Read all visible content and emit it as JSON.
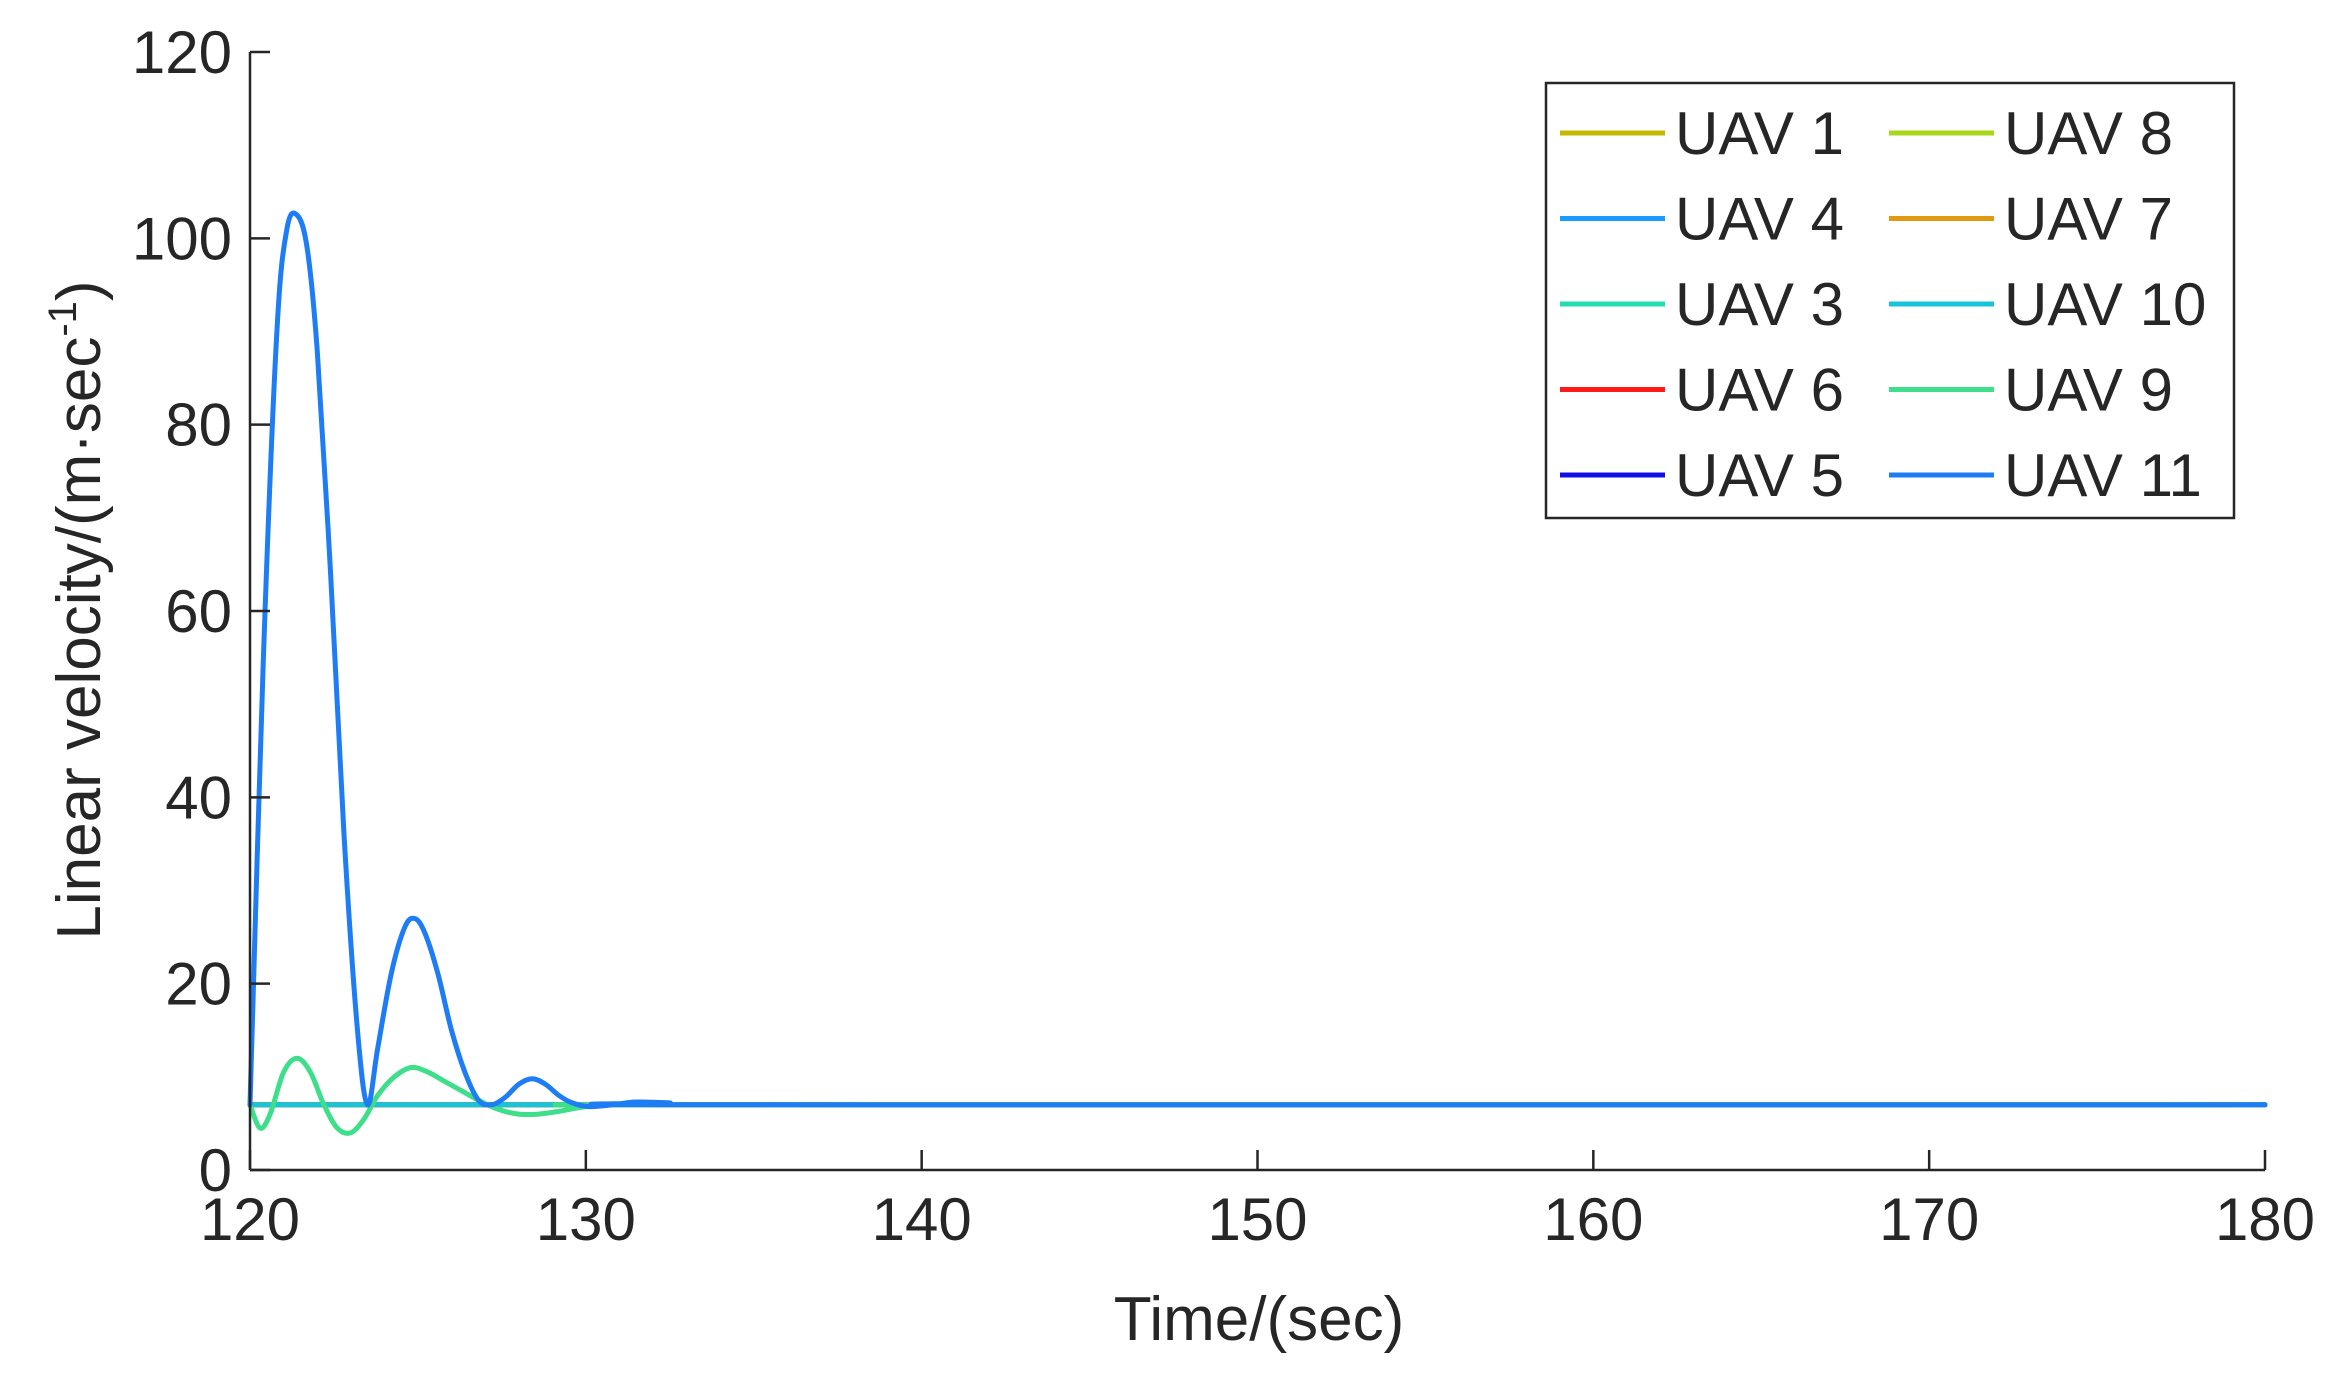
{
  "chart_data": {
    "type": "line",
    "xlabel": "Time/(sec)",
    "ylabel": "Linear velocity/(m·sec",
    "ylabel_superscript": "-1",
    "ylabel_suffix": ")",
    "xlim": [
      120,
      180
    ],
    "ylim": [
      0,
      120
    ],
    "xticks": [
      120,
      130,
      140,
      150,
      160,
      170,
      180
    ],
    "yticks": [
      0,
      20,
      40,
      60,
      80,
      100,
      120
    ],
    "grid": false,
    "legend_position": "top-right",
    "legend_columns": 2,
    "series": [
      {
        "name": "UAV 1",
        "color": "#c5b800",
        "x": [
          120,
          180
        ],
        "y": [
          7,
          7
        ]
      },
      {
        "name": "UAV 4",
        "color": "#1a9cff",
        "x": [
          120,
          180
        ],
        "y": [
          7,
          7
        ]
      },
      {
        "name": "UAV 3",
        "color": "#22ddb0",
        "x": [
          120,
          180
        ],
        "y": [
          7,
          7
        ]
      },
      {
        "name": "UAV 6",
        "color": "#ff1a1a",
        "x": [
          120,
          180
        ],
        "y": [
          7,
          7
        ]
      },
      {
        "name": "UAV 5",
        "color": "#1010e6",
        "x": [
          120,
          180
        ],
        "y": [
          7,
          7
        ]
      },
      {
        "name": "UAV 8",
        "color": "#a8d81c",
        "x": [
          120,
          180
        ],
        "y": [
          7,
          7
        ]
      },
      {
        "name": "UAV 7",
        "color": "#e09a10",
        "x": [
          120,
          180
        ],
        "y": [
          7,
          7
        ]
      },
      {
        "name": "UAV 10",
        "color": "#18c4dc",
        "x": [
          120,
          180
        ],
        "y": [
          7,
          7
        ]
      },
      {
        "name": "UAV 9",
        "color": "#3ede8a",
        "x": [
          120,
          120.3,
          120.6,
          121,
          121.4,
          121.8,
          122.2,
          122.6,
          123,
          123.4,
          123.8,
          124.3,
          124.8,
          125.3,
          125.8,
          126.3,
          126.8,
          127.4,
          128,
          128.6,
          129.2,
          129.8,
          130.5,
          131.5,
          133,
          180
        ],
        "y": [
          7,
          4.5,
          6,
          10.5,
          12,
          10.5,
          7,
          4.5,
          4,
          5.5,
          8,
          10,
          11,
          10.5,
          9.5,
          8.5,
          7.5,
          6.5,
          6,
          6,
          6.3,
          6.7,
          7,
          7,
          7,
          7
        ]
      },
      {
        "name": "UAV 11",
        "color": "#1e7cf5",
        "x": [
          120,
          120.4,
          120.8,
          121.1,
          121.4,
          121.7,
          122,
          122.4,
          122.8,
          123.2,
          123.5,
          123.8,
          124.2,
          124.6,
          124.9,
          125.2,
          125.6,
          126,
          126.4,
          126.8,
          127.2,
          127.6,
          128,
          128.4,
          128.8,
          129.2,
          129.6,
          130.1,
          130.8,
          131.5,
          132.5,
          134,
          180
        ],
        "y": [
          7,
          55,
          90,
          101,
          102.5,
          99,
          88,
          64,
          36,
          15,
          7,
          13,
          21,
          26,
          27,
          25.5,
          21,
          15,
          10.5,
          7.5,
          7,
          7.8,
          9.2,
          9.8,
          9.2,
          8,
          7.2,
          6.8,
          7,
          7.3,
          7.2,
          7,
          7
        ]
      }
    ]
  }
}
